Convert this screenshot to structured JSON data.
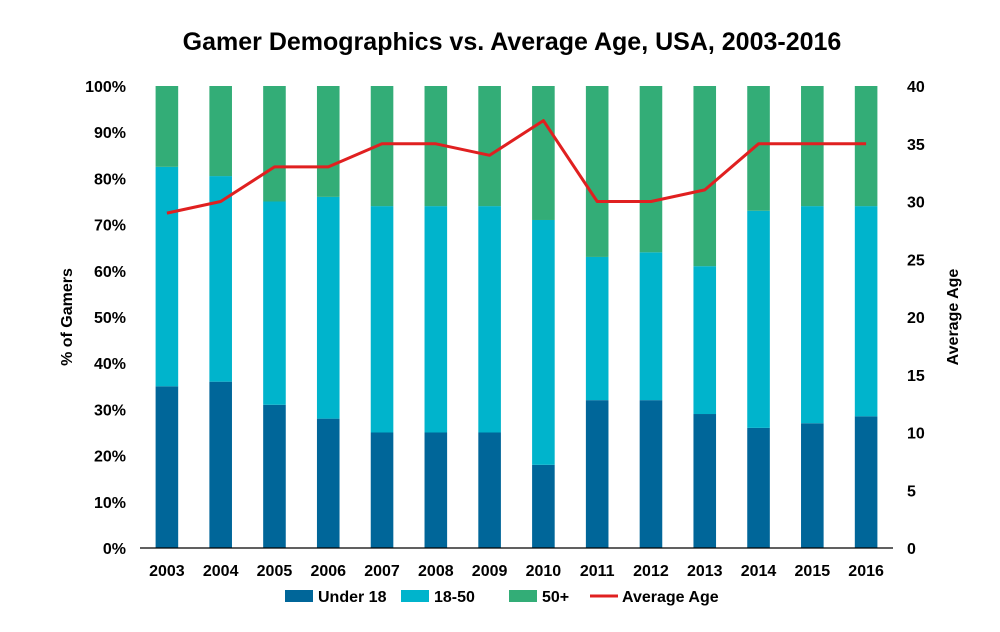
{
  "chart_data": {
    "type": "bar",
    "stacked": true,
    "title": "Gamer Demographics vs. Average Age, USA, 2003-2016",
    "categories": [
      "2003",
      "2004",
      "2005",
      "2006",
      "2007",
      "2008",
      "2009",
      "2010",
      "2011",
      "2012",
      "2013",
      "2014",
      "2015",
      "2016"
    ],
    "series": [
      {
        "name": "Under 18",
        "color": "#006699",
        "values": [
          35,
          36,
          31,
          28,
          25,
          25,
          25,
          18,
          32,
          32,
          29,
          26,
          27,
          28.5
        ]
      },
      {
        "name": "18-50",
        "color": "#00b4cc",
        "values": [
          47.5,
          44.5,
          44,
          48,
          49,
          49,
          49,
          53,
          31,
          32,
          32,
          47,
          47,
          45.5
        ]
      },
      {
        "name": "50+",
        "color": "#33ad77",
        "values": [
          17.5,
          19.5,
          25,
          24,
          26,
          26,
          26,
          29,
          37,
          36,
          39,
          27,
          26,
          26
        ]
      }
    ],
    "line_series": {
      "name": "Average Age",
      "color": "#e02020",
      "axis": "right",
      "values": [
        29,
        30,
        33,
        33,
        35,
        35,
        34,
        37,
        30,
        30,
        31,
        35,
        35,
        35
      ]
    },
    "ylabel": "% of Gamers",
    "ylim": [
      0,
      100
    ],
    "yticks": [
      "0%",
      "10%",
      "20%",
      "30%",
      "40%",
      "50%",
      "60%",
      "70%",
      "80%",
      "90%",
      "100%"
    ],
    "y2label": "Average Age",
    "y2lim": [
      0,
      40
    ],
    "y2ticks": [
      "0",
      "5",
      "10",
      "15",
      "20",
      "25",
      "30",
      "35",
      "40"
    ],
    "legend": {
      "position": "bottom",
      "entries": [
        "Under 18",
        "18-50",
        "50+",
        "Average Age"
      ]
    },
    "grid": false
  }
}
